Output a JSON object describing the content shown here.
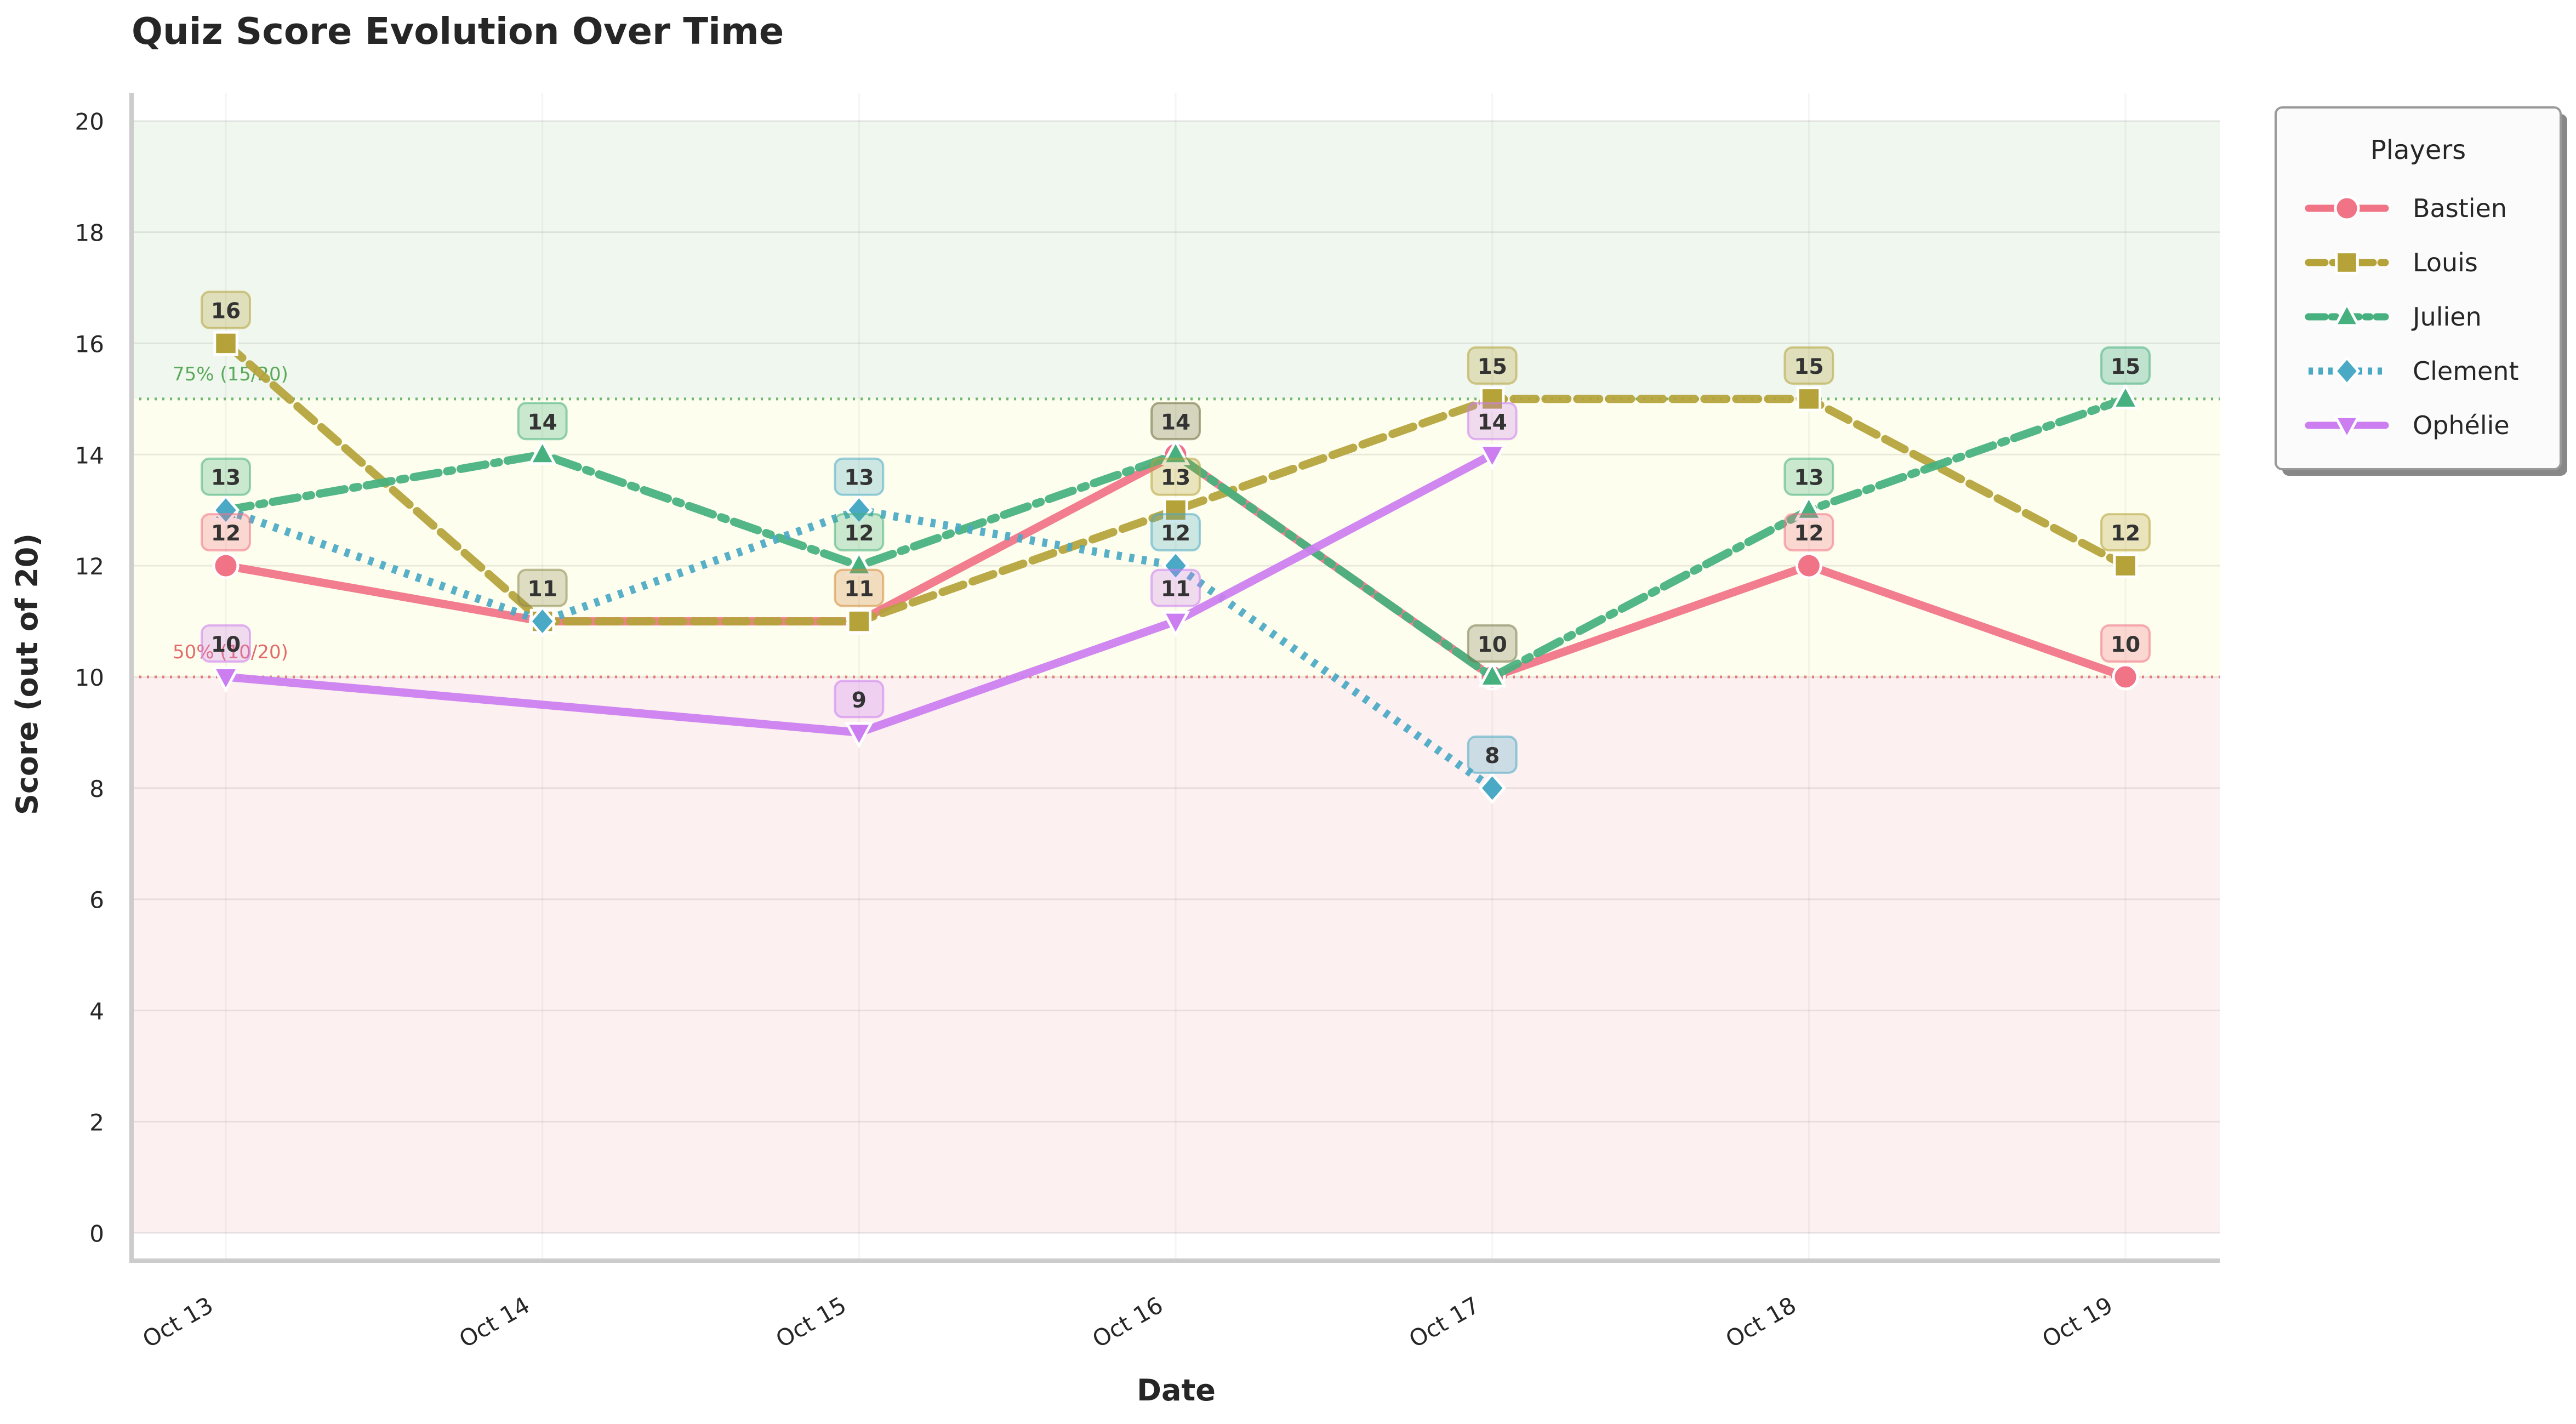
{
  "chart_data": {
    "type": "line",
    "title": "Quiz Score Evolution Over Time",
    "xlabel": "Date",
    "ylabel": "Score (out of 20)",
    "categories": [
      "Oct 13",
      "Oct 14",
      "Oct 15",
      "Oct 16",
      "Oct 17",
      "Oct 18",
      "Oct 19"
    ],
    "ylim": [
      -0.5,
      20.5
    ],
    "yticks": [
      0,
      2,
      4,
      6,
      8,
      10,
      12,
      14,
      16,
      18,
      20
    ],
    "grid": true,
    "bands": [
      {
        "from": 0,
        "to": 10,
        "color": "#fdf0f0"
      },
      {
        "from": 10,
        "to": 15,
        "color": "#fefeee"
      },
      {
        "from": 15,
        "to": 20,
        "color": "#f0f7ef"
      }
    ],
    "thresholds": [
      {
        "value": 15,
        "label": "75% (15/20)",
        "color": "#5aaa5a"
      },
      {
        "value": 10,
        "label": "50% (10/20)",
        "color": "#e36a6a"
      }
    ],
    "legend": {
      "title": "Players",
      "position": "outside-right"
    },
    "series": [
      {
        "name": "Bastien",
        "color": "#f07386",
        "dash": "solid",
        "marker": "circle",
        "values": [
          12,
          11,
          11,
          14,
          10,
          12,
          10
        ]
      },
      {
        "name": "Louis",
        "color": "#b5a33a",
        "dash": "dashed",
        "marker": "square",
        "values": [
          16,
          11,
          11,
          13,
          15,
          15,
          12
        ]
      },
      {
        "name": "Julien",
        "color": "#46b07e",
        "dash": "dashdot",
        "marker": "triangle-up",
        "values": [
          13,
          14,
          12,
          14,
          10,
          13,
          15
        ]
      },
      {
        "name": "Clement",
        "color": "#4aa9c5",
        "dash": "dotted",
        "marker": "diamond",
        "values": [
          13,
          11,
          13,
          12,
          8,
          null,
          null
        ]
      },
      {
        "name": "Ophélie",
        "color": "#cc7ef0",
        "dash": "solid",
        "marker": "triangle-down",
        "values": [
          10,
          null,
          9,
          11,
          14,
          null,
          null
        ]
      }
    ],
    "data_labels": [
      {
        "category": "Oct 13",
        "value": 16,
        "color": "#b5a33a"
      },
      {
        "category": "Oct 13",
        "value": 13,
        "color": "#46b07e"
      },
      {
        "category": "Oct 13",
        "value": 12,
        "color": "#f07386"
      },
      {
        "category": "Oct 13",
        "value": 10,
        "color": "#cc7ef0"
      },
      {
        "category": "Oct 14",
        "value": 14,
        "color": "#46b07e"
      },
      {
        "category": "Oct 14",
        "value": 11,
        "color": "#8c8a50"
      },
      {
        "category": "Oct 15",
        "value": 13,
        "color": "#4aa9c5"
      },
      {
        "category": "Oct 15",
        "value": 12,
        "color": "#46b07e"
      },
      {
        "category": "Oct 15",
        "value": 11,
        "color": "#d28a40"
      },
      {
        "category": "Oct 15",
        "value": 9,
        "color": "#cc7ef0"
      },
      {
        "category": "Oct 16",
        "value": 14,
        "color": "#6b6b40"
      },
      {
        "category": "Oct 16",
        "value": 13,
        "color": "#b5a33a"
      },
      {
        "category": "Oct 16",
        "value": 12,
        "color": "#4aa9c5"
      },
      {
        "category": "Oct 16",
        "value": 11,
        "color": "#cc7ef0"
      },
      {
        "category": "Oct 17",
        "value": 15,
        "color": "#b5a33a"
      },
      {
        "category": "Oct 17",
        "value": 14,
        "color": "#cc7ef0"
      },
      {
        "category": "Oct 17",
        "value": 10,
        "color": "#7a7a50"
      },
      {
        "category": "Oct 17",
        "value": 8,
        "color": "#4aa9c5"
      },
      {
        "category": "Oct 18",
        "value": 15,
        "color": "#b5a33a"
      },
      {
        "category": "Oct 18",
        "value": 13,
        "color": "#46b07e"
      },
      {
        "category": "Oct 18",
        "value": 12,
        "color": "#f07386"
      },
      {
        "category": "Oct 19",
        "value": 15,
        "color": "#46b07e"
      },
      {
        "category": "Oct 19",
        "value": 12,
        "color": "#b5a33a"
      },
      {
        "category": "Oct 19",
        "value": 10,
        "color": "#f07386"
      }
    ]
  }
}
